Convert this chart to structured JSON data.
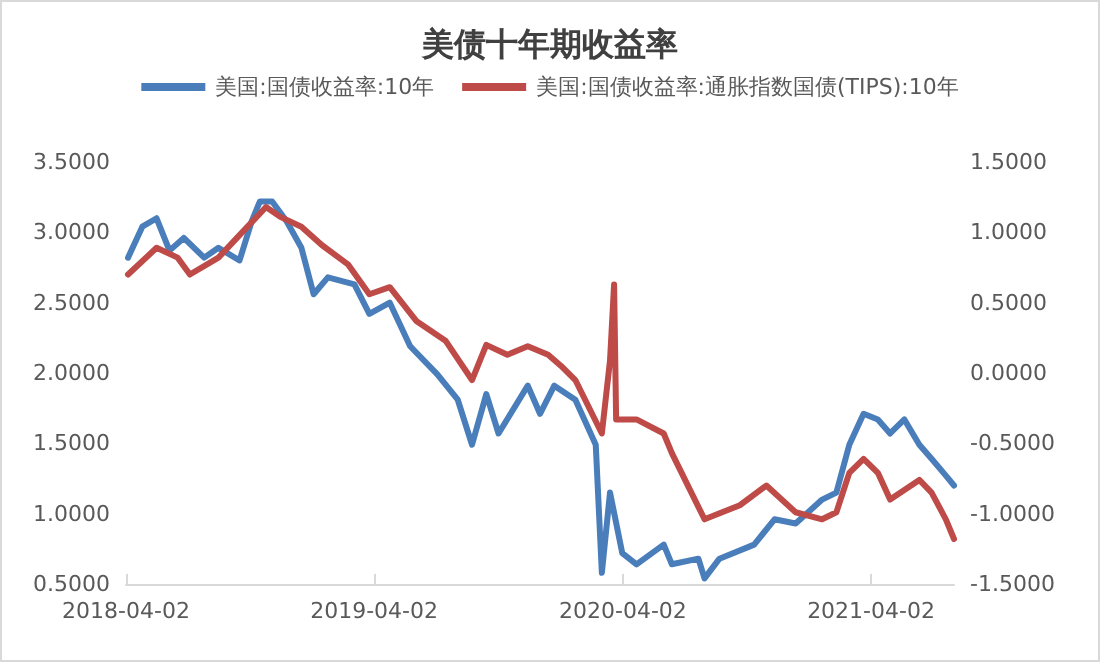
{
  "chart_data": {
    "type": "line",
    "title": "美债十年期收益率",
    "legend": "top",
    "grid": false,
    "marker": "none",
    "line_style": "solid",
    "xlim": [
      "2018-04-02",
      "2021-08-02"
    ],
    "xticks": [
      "2018-04-02",
      "2019-04-02",
      "2020-04-02",
      "2021-04-02"
    ],
    "ylim": [
      0.5,
      3.5
    ],
    "yticks": [
      {
        "value": 0.5,
        "label": "0.5000"
      },
      {
        "value": 1,
        "label": "1.0000"
      },
      {
        "value": 1.5,
        "label": "1.5000"
      },
      {
        "value": 2,
        "label": "2.0000"
      },
      {
        "value": 2.5,
        "label": "2.5000"
      },
      {
        "value": 3,
        "label": "3.0000"
      },
      {
        "value": 3.5,
        "label": "3.5000"
      }
    ],
    "y2lim": [
      -1.5,
      1.5
    ],
    "y2ticks": [
      {
        "value": -1.5,
        "label": "-1.5000"
      },
      {
        "value": -1,
        "label": "-1.0000"
      },
      {
        "value": -0.5,
        "label": "-0.5000"
      },
      {
        "value": 0,
        "label": "0.0000"
      },
      {
        "value": 0.5,
        "label": "0.5000"
      },
      {
        "value": 1,
        "label": "1.0000"
      },
      {
        "value": 1.5,
        "label": "1.5000"
      }
    ],
    "series": [
      {
        "name": "美国:国债收益率:10年",
        "color": "#4a7ebb",
        "x": [
          "2018-04-05",
          "2018-04-26",
          "2018-05-17",
          "2018-06-05",
          "2018-06-26",
          "2018-07-26",
          "2018-08-16",
          "2018-09-16",
          "2018-10-04",
          "2018-10-16",
          "2018-11-03",
          "2018-11-24",
          "2018-12-16",
          "2019-01-03",
          "2019-01-24",
          "2019-03-04",
          "2019-03-26",
          "2019-04-25",
          "2019-05-25",
          "2019-07-04",
          "2019-08-03",
          "2019-08-24",
          "2019-09-14",
          "2019-10-02",
          "2019-11-14",
          "2019-12-02",
          "2019-12-23",
          "2020-01-23",
          "2020-02-22",
          "2020-03-02",
          "2020-03-14",
          "2020-04-01",
          "2020-04-22",
          "2020-06-01",
          "2020-06-13",
          "2020-07-22",
          "2020-07-31",
          "2020-08-22",
          "2020-10-12",
          "2020-11-11",
          "2020-12-12",
          "2021-01-20",
          "2021-02-10",
          "2021-03-01",
          "2021-03-22",
          "2021-04-12",
          "2021-04-30",
          "2021-05-21",
          "2021-06-12",
          "2021-06-30",
          "2021-07-21",
          "2021-08-02"
        ],
        "values": [
          2.82,
          3.04,
          3.1,
          2.87,
          2.96,
          2.82,
          2.89,
          2.8,
          3.08,
          3.22,
          3.22,
          3.08,
          2.89,
          2.56,
          2.68,
          2.63,
          2.42,
          2.5,
          2.19,
          1.99,
          1.81,
          1.49,
          1.85,
          1.57,
          1.91,
          1.71,
          1.91,
          1.81,
          1.49,
          0.58,
          1.15,
          0.72,
          0.64,
          0.78,
          0.64,
          0.68,
          0.54,
          0.68,
          0.78,
          0.96,
          0.93,
          1.1,
          1.15,
          1.49,
          1.71,
          1.67,
          1.57,
          1.67,
          1.49,
          1.39,
          1.27,
          1.2
        ]
      },
      {
        "name": "美国:国债收益率:通胀指数国债(TIPS):10年",
        "color": "#be4b48",
        "axis": "y2",
        "x": [
          "2018-04-05",
          "2018-05-17",
          "2018-06-17",
          "2018-07-05",
          "2018-08-16",
          "2018-09-16",
          "2018-10-25",
          "2018-11-15",
          "2018-12-16",
          "2019-01-15",
          "2019-02-23",
          "2019-03-26",
          "2019-04-25",
          "2019-06-03",
          "2019-07-16",
          "2019-08-24",
          "2019-09-14",
          "2019-10-15",
          "2019-11-14",
          "2019-12-14",
          "2020-01-02",
          "2020-01-23",
          "2020-03-02",
          "2020-03-14",
          "2020-03-20",
          "2020-03-23",
          "2020-04-22",
          "2020-06-01",
          "2020-06-13",
          "2020-07-31",
          "2020-09-21",
          "2020-10-30",
          "2020-12-12",
          "2021-01-20",
          "2021-02-10",
          "2021-03-01",
          "2021-03-22",
          "2021-04-12",
          "2021-04-30",
          "2021-06-12",
          "2021-06-30",
          "2021-07-21",
          "2021-08-02"
        ],
        "values": [
          0.7,
          0.89,
          0.82,
          0.7,
          0.82,
          0.98,
          1.18,
          1.11,
          1.04,
          0.91,
          0.77,
          0.56,
          0.61,
          0.37,
          0.23,
          -0.05,
          0.2,
          0.13,
          0.19,
          0.13,
          0.05,
          -0.05,
          -0.43,
          0.09,
          0.63,
          -0.33,
          -0.33,
          -0.43,
          -0.57,
          -1.04,
          -0.94,
          -0.8,
          -0.99,
          -1.04,
          -0.99,
          -0.71,
          -0.61,
          -0.71,
          -0.9,
          -0.76,
          -0.85,
          -1.04,
          -1.18
        ]
      }
    ]
  }
}
